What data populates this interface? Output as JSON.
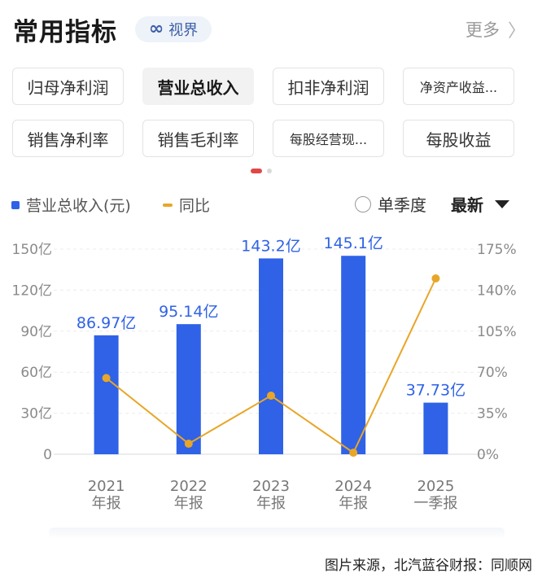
{
  "header": {
    "title": "常用指标",
    "badge_icon": "infinity-icon",
    "badge_icon_glyph": "∞",
    "badge_label": "视界",
    "more_label": "更多",
    "more_icon": "chevron-right-icon",
    "more_icon_glyph": "〉"
  },
  "metrics": [
    {
      "label": "归母净利润",
      "active": false
    },
    {
      "label": "营业总收入",
      "active": true
    },
    {
      "label": "扣非净利润",
      "active": false
    },
    {
      "label": "净资产收益...",
      "active": false
    },
    {
      "label": "销售净利率",
      "active": false
    },
    {
      "label": "销售毛利率",
      "active": false
    },
    {
      "label": "每股经营现...",
      "active": false
    },
    {
      "label": "每股收益",
      "active": false
    }
  ],
  "controls": {
    "legend_bar": "营业总收入(元)",
    "legend_line": "同比",
    "quarterly_label": "单季度",
    "sort_label": "最新"
  },
  "colors": {
    "bar": "#2f62e6",
    "line": "#e8a628",
    "accent": "#e04848",
    "label": "#2f62e6"
  },
  "chart_data": {
    "type": "bar",
    "categories": [
      [
        "2021",
        "年报"
      ],
      [
        "2022",
        "年报"
      ],
      [
        "2023",
        "年报"
      ],
      [
        "2024",
        "年报"
      ],
      [
        "2025",
        "一季报"
      ]
    ],
    "series": [
      {
        "name": "营业总收入(元)",
        "type": "bar",
        "axis": "left",
        "values": [
          86.97,
          95.14,
          143.2,
          145.1,
          37.73
        ],
        "labels": [
          "86.97亿",
          "95.14亿",
          "143.2亿",
          "145.1亿",
          "37.73亿"
        ]
      },
      {
        "name": "同比",
        "type": "line",
        "axis": "right",
        "values": [
          65,
          9,
          50,
          1.3,
          150
        ]
      }
    ],
    "y_left": {
      "ticks": [
        "0",
        "30亿",
        "60亿",
        "90亿",
        "120亿",
        "150亿"
      ],
      "tick_values": [
        0,
        30,
        60,
        90,
        120,
        150
      ],
      "range": [
        0,
        150
      ]
    },
    "y_right": {
      "ticks": [
        "0%",
        "35%",
        "70%",
        "105%",
        "140%",
        "175%"
      ],
      "tick_values": [
        0,
        35,
        70,
        105,
        140,
        175
      ],
      "range": [
        0,
        175
      ]
    },
    "grid": true,
    "legend": "top-left"
  },
  "footer": {
    "source": "图片来源，北汽蓝谷财报：同顺网"
  }
}
